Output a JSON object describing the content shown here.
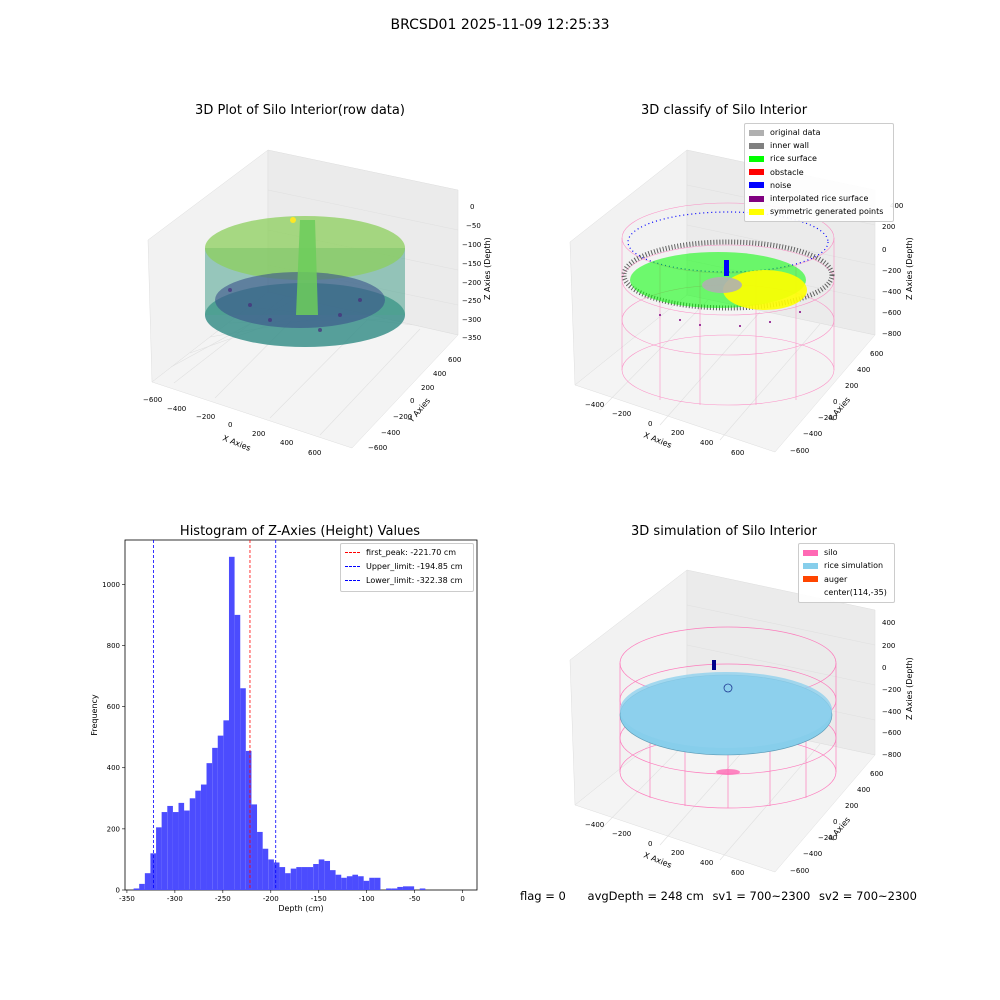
{
  "figure": {
    "suptitle": "BRCSD01 2025-11-09 12:25:33",
    "footer": {
      "flag": "flag = 0",
      "avg": "avgDepth = 248 cm",
      "sv1": "sv1 = 700~2300",
      "sv2": "sv2 = 700~2300"
    }
  },
  "colors": {
    "hist_bar": "#4c4cfe",
    "first_peak": "#ff0000",
    "limit": "#0000ff",
    "silo": "#ff69b4",
    "rice_sim": "#87ceeb",
    "auger": "#ff4500"
  },
  "panels": {
    "raw": {
      "title": "3D Plot of Silo Interior(row data)",
      "xlabel": "X Axies",
      "ylabel": "Y Axies",
      "zlabel": "Z Axies (Depth)",
      "xticks": [
        "−600",
        "−400",
        "−200",
        "0",
        "200",
        "400",
        "600"
      ],
      "yticks": [
        "−600",
        "−400",
        "−200",
        "0",
        "200",
        "400",
        "600"
      ],
      "zticks": [
        "0",
        "−50",
        "−100",
        "−150",
        "−200",
        "−250",
        "−300",
        "−350"
      ]
    },
    "classify": {
      "title": "3D classify of Silo Interior",
      "xlabel": "X Axies",
      "ylabel": "Y Axies",
      "zlabel": "Z Axies (Depth)",
      "xticks": [
        "−400",
        "−200",
        "0",
        "200",
        "400",
        "600"
      ],
      "yticks": [
        "−600",
        "−400",
        "−200",
        "0",
        "200",
        "400",
        "600"
      ],
      "zticks": [
        "200",
        "0",
        "−200",
        "−400",
        "−600",
        "−800"
      ],
      "zticks_top": [
        "400"
      ],
      "legend": [
        {
          "label": "original data",
          "color": "#b0b0b0"
        },
        {
          "label": "inner wall",
          "color": "#808080"
        },
        {
          "label": "rice surface",
          "color": "#00ff00"
        },
        {
          "label": "obstacle",
          "color": "#ff0000"
        },
        {
          "label": "noise",
          "color": "#0000ff"
        },
        {
          "label": "interpolated rice surface",
          "color": "#800080"
        },
        {
          "label": "symmetric generated points",
          "color": "#ffff00"
        }
      ]
    },
    "simulation": {
      "title": "3D simulation of Silo Interior",
      "xlabel": "X Axies",
      "ylabel": "Y Axies",
      "zlabel": "Z Axies (Depth)",
      "xticks": [
        "−400",
        "−200",
        "0",
        "200",
        "400",
        "600"
      ],
      "yticks": [
        "−600",
        "−400",
        "−200",
        "0",
        "200",
        "400",
        "600"
      ],
      "zticks": [
        "400",
        "200",
        "0",
        "−200",
        "−400",
        "−600",
        "−800"
      ],
      "legend": [
        {
          "label": "silo",
          "color": "#ff69b4"
        },
        {
          "label": "rice simulation",
          "color": "#87ceeb"
        },
        {
          "label": "auger",
          "color": "#ff4500"
        },
        {
          "label": "center(114,-35)",
          "color": ""
        }
      ]
    }
  },
  "chart_data": {
    "type": "bar",
    "title": "Histogram of Z-Axies (Height) Values",
    "xlabel": "Depth (cm)",
    "ylabel": "Frequency",
    "xlim": [
      -352,
      15
    ],
    "ylim": [
      0,
      1145
    ],
    "xticks": [
      -350,
      -300,
      -250,
      -200,
      -150,
      -100,
      -50,
      0
    ],
    "yticks": [
      0,
      200,
      400,
      600,
      800,
      1000
    ],
    "bin_width": 5.85,
    "bins_start": [
      -343.0,
      -337.2,
      -331.3,
      -325.5,
      -319.6,
      -313.8,
      -307.9,
      -302.1,
      -296.2,
      -290.4,
      -284.5,
      -278.7,
      -272.8,
      -267.0,
      -261.1,
      -255.3,
      -249.4,
      -243.6,
      -237.7,
      -231.9,
      -226.0,
      -220.2,
      -214.3,
      -208.5,
      -202.6,
      -196.8,
      -190.9,
      -185.1,
      -179.2,
      -173.4,
      -167.5,
      -161.7,
      -155.8,
      -150.0,
      -144.1,
      -138.3,
      -132.4,
      -126.6,
      -120.7,
      -114.9,
      -109.0,
      -103.2,
      -97.3,
      -91.5,
      -85.6,
      -79.8,
      -73.9,
      -68.1,
      -62.2,
      -56.4,
      -50.5,
      -44.7,
      -38.8,
      -33.0,
      -27.1,
      -21.3,
      -15.4,
      -9.6,
      -3.7
    ],
    "counts": [
      5,
      20,
      55,
      120,
      205,
      255,
      275,
      255,
      285,
      260,
      300,
      325,
      345,
      415,
      465,
      505,
      555,
      1090,
      900,
      660,
      455,
      280,
      190,
      135,
      100,
      90,
      75,
      55,
      70,
      75,
      75,
      75,
      85,
      100,
      95,
      65,
      50,
      40,
      45,
      50,
      45,
      30,
      40,
      40,
      0,
      5,
      5,
      10,
      12,
      12,
      0,
      5,
      0,
      0,
      0,
      0,
      0,
      0,
      0
    ],
    "lines": [
      {
        "name": "first_peak: -221.70 cm",
        "x": -221.7,
        "color": "#ff0000"
      },
      {
        "name": "Upper_limit: -194.85 cm",
        "x": -194.85,
        "color": "#0000ff"
      },
      {
        "name": "Lower_limit: -322.38 cm",
        "x": -322.38,
        "color": "#0000ff"
      }
    ],
    "legend_position": "top-right"
  }
}
